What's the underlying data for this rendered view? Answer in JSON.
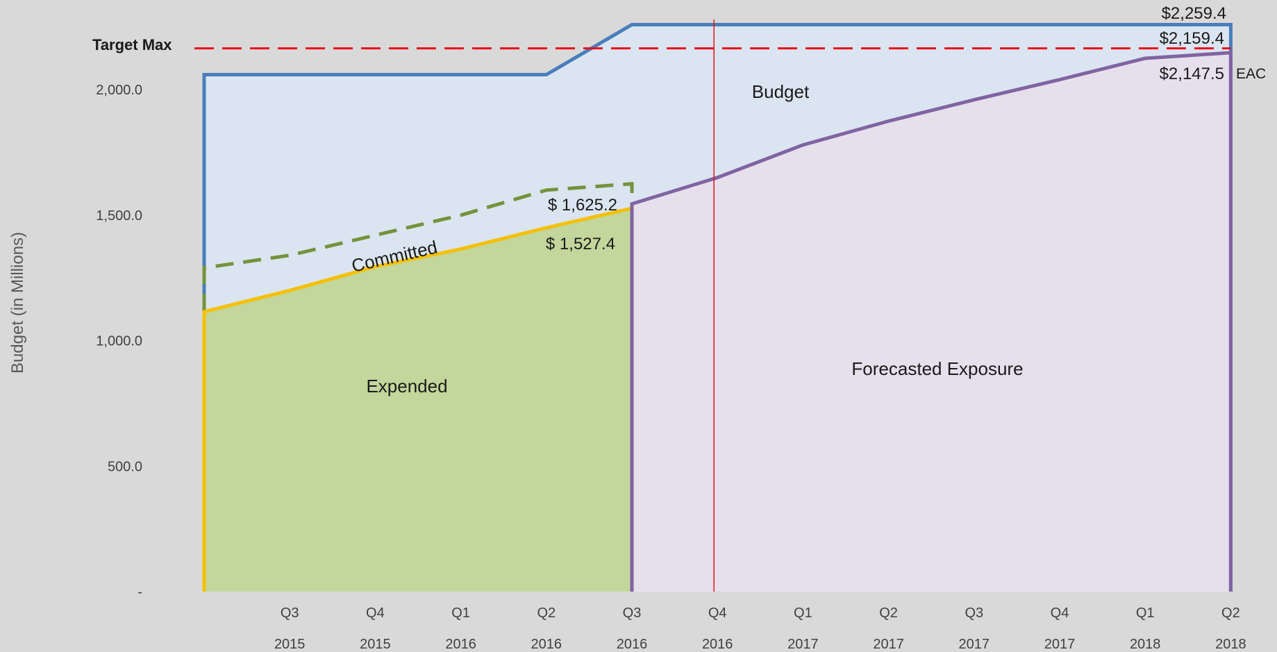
{
  "chart_data": {
    "type": "area",
    "ylabel": "Budget (in Millions)",
    "ylim": [
      0,
      2300
    ],
    "yticks": [
      {
        "value": 0,
        "label": "-"
      },
      {
        "value": 500,
        "label": "500.0"
      },
      {
        "value": 1000,
        "label": "1,000.0"
      },
      {
        "value": 1500,
        "label": "1,500.0"
      },
      {
        "value": 2000,
        "label": "2,000.0"
      }
    ],
    "x_quarter_range": [
      2015.25,
      2018.5
    ],
    "xticks": [
      {
        "x": 2015.5,
        "quarter": "Q3",
        "year": "2015"
      },
      {
        "x": 2015.75,
        "quarter": "Q4",
        "year": "2015"
      },
      {
        "x": 2016.0,
        "quarter": "Q1",
        "year": "2016"
      },
      {
        "x": 2016.25,
        "quarter": "Q2",
        "year": "2016"
      },
      {
        "x": 2016.5,
        "quarter": "Q3",
        "year": "2016"
      },
      {
        "x": 2016.75,
        "quarter": "Q4",
        "year": "2016"
      },
      {
        "x": 2017.0,
        "quarter": "Q1",
        "year": "2017"
      },
      {
        "x": 2017.25,
        "quarter": "Q2",
        "year": "2017"
      },
      {
        "x": 2017.5,
        "quarter": "Q3",
        "year": "2017"
      },
      {
        "x": 2017.75,
        "quarter": "Q4",
        "year": "2017"
      },
      {
        "x": 2018.0,
        "quarter": "Q1",
        "year": "2018"
      },
      {
        "x": 2018.25,
        "quarter": "Q2",
        "year": "2018"
      }
    ],
    "series": [
      {
        "name": "Budget",
        "color": "#4a7ebb",
        "points": [
          [
            2015.25,
            0
          ],
          [
            2015.25,
            2060
          ],
          [
            2016.25,
            2060
          ],
          [
            2016.5,
            2259.4
          ],
          [
            2018.25,
            2259.4
          ],
          [
            2018.25,
            0
          ]
        ]
      },
      {
        "name": "Committed",
        "color": "#76923c",
        "dash": true,
        "points": [
          [
            2015.25,
            1115
          ],
          [
            2015.25,
            1290
          ],
          [
            2015.5,
            1340
          ],
          [
            2015.75,
            1420
          ],
          [
            2016.0,
            1500
          ],
          [
            2016.25,
            1600
          ],
          [
            2016.5,
            1625.2
          ],
          [
            2016.5,
            1545
          ]
        ]
      },
      {
        "name": "Expended",
        "color": "#f5c000",
        "points": [
          [
            2015.25,
            0
          ],
          [
            2015.25,
            1115
          ],
          [
            2015.5,
            1200
          ],
          [
            2015.75,
            1295
          ],
          [
            2016.0,
            1365
          ],
          [
            2016.25,
            1450
          ],
          [
            2016.5,
            1527.4
          ],
          [
            2016.5,
            0
          ]
        ]
      },
      {
        "name": "Forecasted Exposure",
        "color": "#8064a2",
        "points": [
          [
            2016.5,
            0
          ],
          [
            2016.5,
            1545
          ],
          [
            2016.75,
            1650
          ],
          [
            2017.0,
            1780
          ],
          [
            2017.25,
            1875
          ],
          [
            2017.5,
            1960
          ],
          [
            2017.75,
            2040
          ],
          [
            2018.0,
            2125
          ],
          [
            2018.25,
            2147.5
          ],
          [
            2018.25,
            0
          ]
        ]
      }
    ],
    "target_max": {
      "label": "Target Max",
      "value": 2159.4,
      "color": "#e8101a"
    },
    "current_marker": {
      "x": 2016.75,
      "color": "#e8101a"
    },
    "region_labels": {
      "budget": "Budget",
      "committed": "Committed",
      "expended": "Expended",
      "forecast": "Forecasted Exposure"
    },
    "annotations": {
      "budget_end": "$2,259.4",
      "target_end": "$2,159.4",
      "eac_value": "$2,147.5",
      "eac_label": "EAC",
      "committed_value": "$ 1,625.2",
      "expended_value": "$ 1,527.4"
    },
    "colors": {
      "budget_fill": "#dbe5f1",
      "expended_fill": "#c3d69b",
      "forecast_fill": "#e6e0ec"
    }
  }
}
